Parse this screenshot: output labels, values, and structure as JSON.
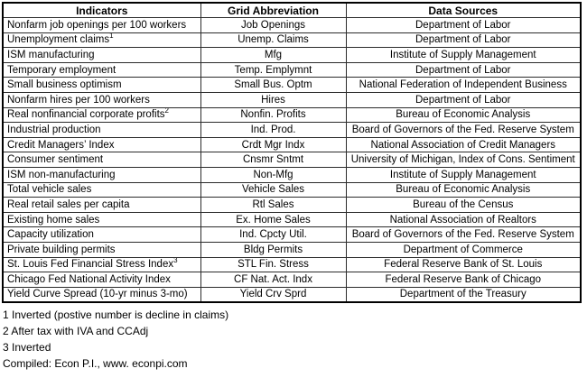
{
  "table": {
    "headers": [
      "Indicators",
      "Grid Abbreviation",
      "Data Sources"
    ],
    "rows": [
      {
        "indicator": "Nonfarm job openings per 100 workers",
        "abbr": "Job Openings",
        "source": "Department of Labor"
      },
      {
        "indicator": "Unemployment claims",
        "sup": "1",
        "abbr": "Unemp. Claims",
        "source": "Department of Labor"
      },
      {
        "indicator": "ISM manufacturing",
        "abbr": "Mfg",
        "source": "Institute of Supply Management"
      },
      {
        "indicator": "Temporary employment",
        "abbr": "Temp. Emplymnt",
        "source": "Department of Labor"
      },
      {
        "indicator": "Small business optimism",
        "abbr": "Small Bus. Optm",
        "source": "National Federation of Independent Business"
      },
      {
        "indicator": "Nonfarm hires per 100 workers",
        "abbr": "Hires",
        "source": "Department of Labor"
      },
      {
        "indicator": "Real nonfinancial corporate profits",
        "sup": "2",
        "abbr": "Nonfin. Profits",
        "source": "Bureau of Economic Analysis"
      },
      {
        "indicator": "Industrial production",
        "abbr": "Ind. Prod.",
        "source": "Board of Governors of the Fed. Reserve System"
      },
      {
        "indicator": "Credit Managers’ Index",
        "abbr": "Crdt Mgr Indx",
        "source": "National Association of Credit Managers"
      },
      {
        "indicator": "Consumer sentiment",
        "abbr": "Cnsmr Sntmt",
        "source": "University of Michigan, Index of Cons. Sentiment"
      },
      {
        "indicator": "ISM non-manufacturing",
        "abbr": "Non-Mfg",
        "source": "Institute of Supply Management"
      },
      {
        "indicator": "Total vehicle sales",
        "abbr": "Vehicle Sales",
        "source": "Bureau of Economic Analysis"
      },
      {
        "indicator": "Real retail sales per capita",
        "abbr": "Rtl Sales",
        "source": "Bureau of the Census"
      },
      {
        "indicator": "Existing home sales",
        "abbr": "Ex. Home Sales",
        "source": "National Association of Realtors"
      },
      {
        "indicator": "Capacity utilization",
        "abbr": "Ind. Cpcty Util.",
        "source": "Board of Governors of the Fed. Reserve System"
      },
      {
        "indicator": "Private building permits",
        "abbr": "Bldg Permits",
        "source": "Department of Commerce"
      },
      {
        "indicator": "St. Louis Fed Financial Stress Index",
        "sup": "3",
        "abbr": "STL Fin. Stress",
        "source": "Federal Reserve Bank of St. Louis"
      },
      {
        "indicator": "Chicago Fed National Activity Index",
        "abbr": "CF Nat. Act. Indx",
        "source": "Federal Reserve Bank of Chicago"
      },
      {
        "indicator": "Yield Curve Spread (10-yr minus 3-mo)",
        "abbr": "Yield Crv Sprd",
        "source": "Department of the Treasury"
      }
    ]
  },
  "footnotes": [
    "1 Inverted (postive number is decline in claims)",
    "2 After tax with IVA and CCAdj",
    "3 Inverted",
    "Compiled: Econ P.I., www. econpi.com"
  ],
  "colors": {
    "text": "#000000",
    "border_outer": "#000000",
    "border_inner": "#2b2b2b",
    "background": "#ffffff"
  }
}
